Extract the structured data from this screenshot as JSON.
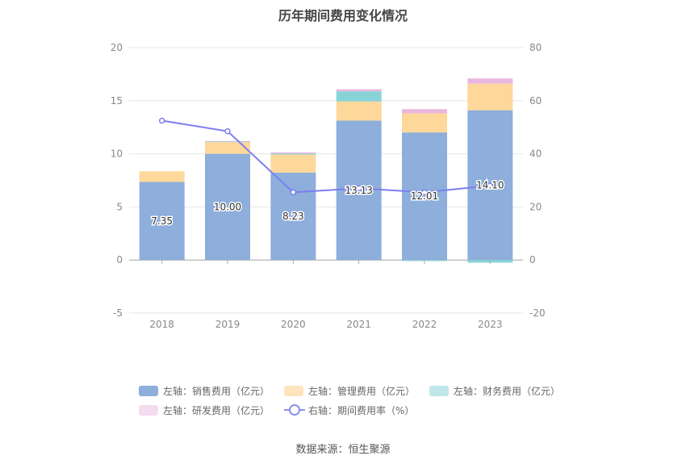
{
  "title": "历年期间费用变化情况",
  "source": "数据来源：恒生聚源",
  "colors": {
    "sales": "#8eaedb",
    "admin": "#fdd89a",
    "finance": "#88d3d8",
    "rnd": "#e9b7de",
    "rate": "#7b7ff0"
  },
  "chart_data": {
    "type": "bar",
    "categories": [
      "2018",
      "2019",
      "2020",
      "2021",
      "2022",
      "2023"
    ],
    "left_axis": {
      "ylim": [
        -5,
        20
      ],
      "ticks": [
        -5,
        0,
        5,
        10,
        15,
        20
      ]
    },
    "right_axis": {
      "ylim": [
        -20,
        80
      ],
      "ticks": [
        -20,
        0,
        20,
        40,
        60,
        80
      ]
    },
    "series": [
      {
        "key": "sales",
        "name": "左轴：销售费用（亿元）",
        "axis": "left",
        "stacked": true,
        "values": [
          7.35,
          10.0,
          8.23,
          13.13,
          12.01,
          14.1
        ]
      },
      {
        "key": "admin",
        "name": "左轴：管理费用（亿元）",
        "axis": "left",
        "stacked": true,
        "values": [
          1.0,
          1.1,
          1.7,
          1.8,
          1.8,
          2.5
        ]
      },
      {
        "key": "finance",
        "name": "左轴：财务费用（亿元）",
        "axis": "left",
        "stacked": true,
        "values": [
          0.0,
          0.05,
          0.1,
          0.95,
          -0.1,
          -0.25
        ]
      },
      {
        "key": "rnd",
        "name": "左轴：研发费用（亿元）",
        "axis": "left",
        "stacked": true,
        "values": [
          0.0,
          0.05,
          0.1,
          0.2,
          0.4,
          0.5
        ]
      },
      {
        "key": "rate",
        "name": "右轴：期间费用率（%）",
        "axis": "right",
        "type": "line",
        "values": [
          52.5,
          48.5,
          25.5,
          27.0,
          25.5,
          28.0
        ]
      }
    ],
    "data_labels": [
      "7.35",
      "10.00",
      "8.23",
      "13.13",
      "12.01",
      "14.10"
    ]
  }
}
